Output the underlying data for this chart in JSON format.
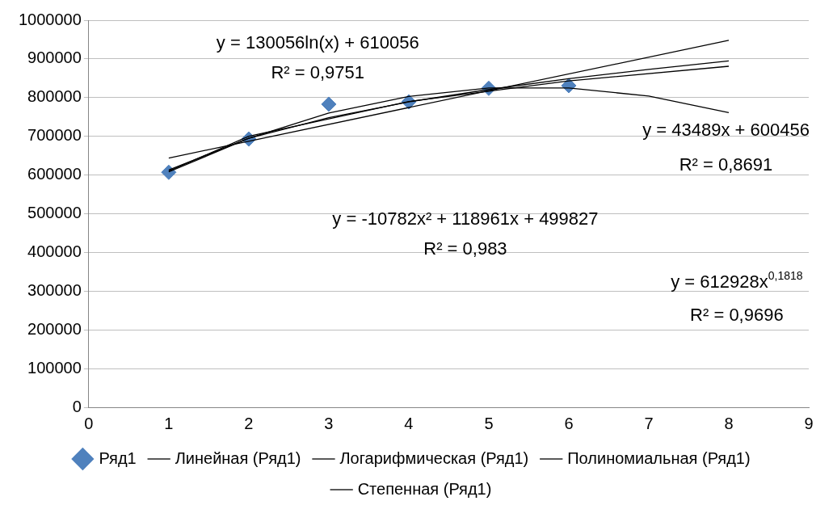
{
  "chart_data": {
    "type": "scatter",
    "series": [
      {
        "name": "Ряд1",
        "color": "#4f81bd",
        "marker": "diamond",
        "x": [
          1,
          2,
          3,
          4,
          5,
          6
        ],
        "values": [
          607000,
          693000,
          783000,
          789000,
          824000,
          831000
        ]
      },
      {
        "name": "Линейная (Ряд1)",
        "type": "line",
        "color": "#000000",
        "marker": "none",
        "x": [
          1,
          8
        ],
        "values": [
          644000,
          948000
        ]
      },
      {
        "name": "Логарифмическая (Ряд1)",
        "type": "line",
        "color": "#000000",
        "marker": "none",
        "x": [
          1,
          2,
          4,
          6,
          8
        ],
        "values": [
          610000,
          700000,
          790000,
          843000,
          881000
        ]
      },
      {
        "name": "Полиномиальная (Ряд1)",
        "type": "line",
        "color": "#000000",
        "marker": "none",
        "x": [
          1,
          2,
          3,
          4,
          5,
          6,
          7,
          8
        ],
        "values": [
          608000,
          695000,
          760000,
          803000,
          825000,
          825000,
          804000,
          761000
        ]
      },
      {
        "name": "Степенная (Ряд1)",
        "type": "line",
        "color": "#000000",
        "marker": "none",
        "x": [
          1,
          2,
          3,
          4,
          5,
          6,
          7,
          8
        ],
        "values": [
          613000,
          695000,
          748000,
          789000,
          821000,
          849000,
          873000,
          895000
        ]
      }
    ],
    "xlim": [
      0,
      9
    ],
    "xticks": [
      0,
      1,
      2,
      3,
      4,
      5,
      6,
      7,
      8,
      9
    ],
    "ylim": [
      0,
      1000000
    ],
    "yticks": [
      0,
      100000,
      200000,
      300000,
      400000,
      500000,
      600000,
      700000,
      800000,
      900000,
      1000000
    ],
    "grid": "y",
    "legend": "bottom",
    "annotations": [
      "y = 130056ln(x) + 610056",
      "R² = 0,9751",
      "y = 43489x + 600456",
      "R² = 0,8691",
      "y = -10782x² + 118961x + 499827",
      "R² = 0,983",
      "y = 612928x$^{0,1818}$",
      "R² = 0,9696"
    ]
  }
}
